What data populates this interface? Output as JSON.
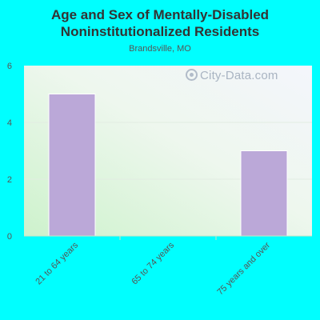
{
  "chart_data": {
    "type": "bar",
    "title": "Age and Sex of Mentally-Disabled Noninstitutionalized Residents",
    "subtitle": "Brandsville, MO",
    "categories": [
      "21 to 64 years",
      "65 to 74 years",
      "75 years and over"
    ],
    "values": [
      5,
      0,
      3
    ],
    "ylim": [
      0,
      6
    ],
    "yticks": [
      0,
      2,
      4,
      6
    ],
    "bar_color": "#bba8d8",
    "grid": true
  },
  "watermark": "City-Data.com"
}
